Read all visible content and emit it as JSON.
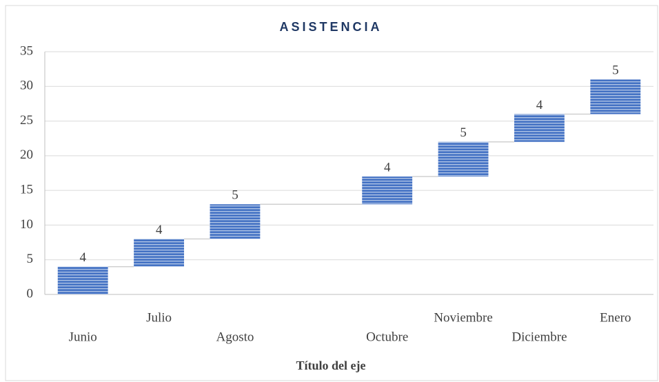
{
  "chart_data": {
    "type": "waterfall",
    "title": "ASISTENCIA",
    "x_label": "Título del eje",
    "categories": [
      "Junio",
      "Julio",
      "Agosto",
      null,
      "Octubre",
      "Noviembre",
      "Diciembre",
      "Enero"
    ],
    "values": [
      4,
      4,
      5,
      null,
      4,
      5,
      4,
      5
    ],
    "color": "#4472c4",
    "ylim": [
      0,
      35
    ],
    "yticks": [
      0,
      5,
      10,
      15,
      20,
      25,
      30,
      35
    ],
    "grid": true
  }
}
